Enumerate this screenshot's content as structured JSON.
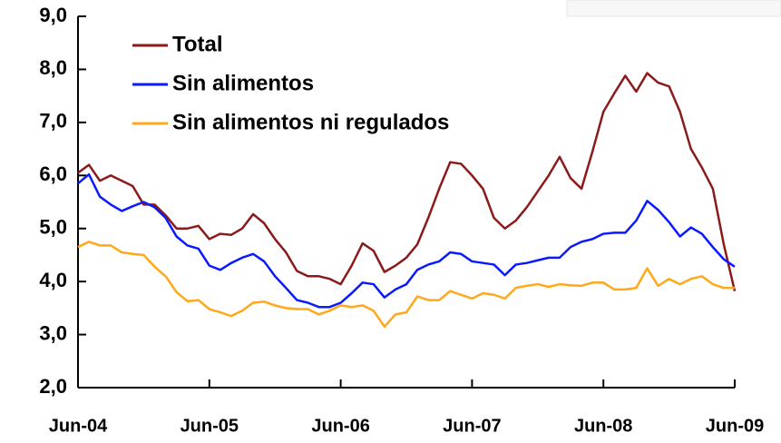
{
  "chart_data": {
    "type": "line",
    "categories": [
      "Jun-04",
      null,
      null,
      null,
      null,
      null,
      null,
      null,
      null,
      null,
      null,
      null,
      "Jun-05",
      null,
      null,
      null,
      null,
      null,
      null,
      null,
      null,
      null,
      null,
      null,
      "Jun-06",
      null,
      null,
      null,
      null,
      null,
      null,
      null,
      null,
      null,
      null,
      null,
      "Jun-07",
      null,
      null,
      null,
      null,
      null,
      null,
      null,
      null,
      null,
      null,
      null,
      "Jun-08",
      null,
      null,
      null,
      null,
      null,
      null,
      null,
      null,
      null,
      null,
      null,
      "Jun-09"
    ],
    "series": [
      {
        "name": "Total",
        "color": "#8b1a1a",
        "values": [
          6.05,
          6.2,
          5.9,
          6.0,
          5.9,
          5.8,
          5.45,
          5.45,
          5.25,
          5.0,
          5.0,
          5.05,
          4.8,
          4.9,
          4.88,
          5.0,
          5.27,
          5.1,
          4.8,
          4.55,
          4.2,
          4.1,
          4.1,
          4.05,
          3.95,
          4.3,
          4.72,
          4.58,
          4.18,
          4.3,
          4.45,
          4.7,
          5.2,
          5.75,
          6.25,
          6.22,
          6.0,
          5.75,
          5.2,
          5.0,
          5.15,
          5.4,
          5.7,
          6.0,
          6.35,
          5.95,
          5.75,
          6.45,
          7.2,
          7.55,
          7.88,
          7.58,
          7.93,
          7.75,
          7.68,
          7.2,
          6.5,
          6.15,
          5.75,
          4.7,
          3.82
        ]
      },
      {
        "name": "Sin alimentos",
        "color": "#0a1aff",
        "values": [
          5.85,
          6.02,
          5.6,
          5.45,
          5.33,
          5.42,
          5.5,
          5.4,
          5.2,
          4.85,
          4.68,
          4.62,
          4.3,
          4.22,
          4.35,
          4.45,
          4.52,
          4.38,
          4.1,
          3.88,
          3.65,
          3.6,
          3.52,
          3.52,
          3.6,
          3.78,
          3.98,
          3.95,
          3.7,
          3.85,
          3.95,
          4.22,
          4.32,
          4.38,
          4.55,
          4.52,
          4.38,
          4.35,
          4.32,
          4.12,
          4.32,
          4.35,
          4.4,
          4.45,
          4.45,
          4.65,
          4.75,
          4.8,
          4.9,
          4.92,
          4.92,
          5.15,
          5.52,
          5.35,
          5.12,
          4.85,
          5.02,
          4.9,
          4.65,
          4.42,
          4.28
        ]
      },
      {
        "name": "Sin alimentos ni regulados",
        "color": "#ffa81a",
        "values": [
          4.65,
          4.75,
          4.68,
          4.68,
          4.55,
          4.52,
          4.5,
          4.28,
          4.1,
          3.8,
          3.63,
          3.65,
          3.48,
          3.42,
          3.35,
          3.45,
          3.6,
          3.62,
          3.55,
          3.5,
          3.48,
          3.48,
          3.38,
          3.45,
          3.55,
          3.52,
          3.55,
          3.45,
          3.15,
          3.38,
          3.42,
          3.72,
          3.65,
          3.65,
          3.82,
          3.75,
          3.68,
          3.78,
          3.75,
          3.68,
          3.88,
          3.92,
          3.95,
          3.9,
          3.95,
          3.93,
          3.92,
          3.98,
          3.98,
          3.85,
          3.85,
          3.88,
          4.25,
          3.92,
          4.05,
          3.95,
          4.05,
          4.1,
          3.95,
          3.88,
          3.88
        ]
      }
    ],
    "ylim": [
      2,
      9
    ],
    "yticks": [
      {
        "value": 2,
        "label": "2,0"
      },
      {
        "value": 3,
        "label": "3,0"
      },
      {
        "value": 4,
        "label": "4,0"
      },
      {
        "value": 5,
        "label": "5,0"
      },
      {
        "value": 6,
        "label": "6,0"
      },
      {
        "value": 7,
        "label": "7,0"
      },
      {
        "value": 8,
        "label": "8,0"
      },
      {
        "value": 9,
        "label": "9,0"
      }
    ],
    "legend": "upper-left",
    "grid": false
  }
}
